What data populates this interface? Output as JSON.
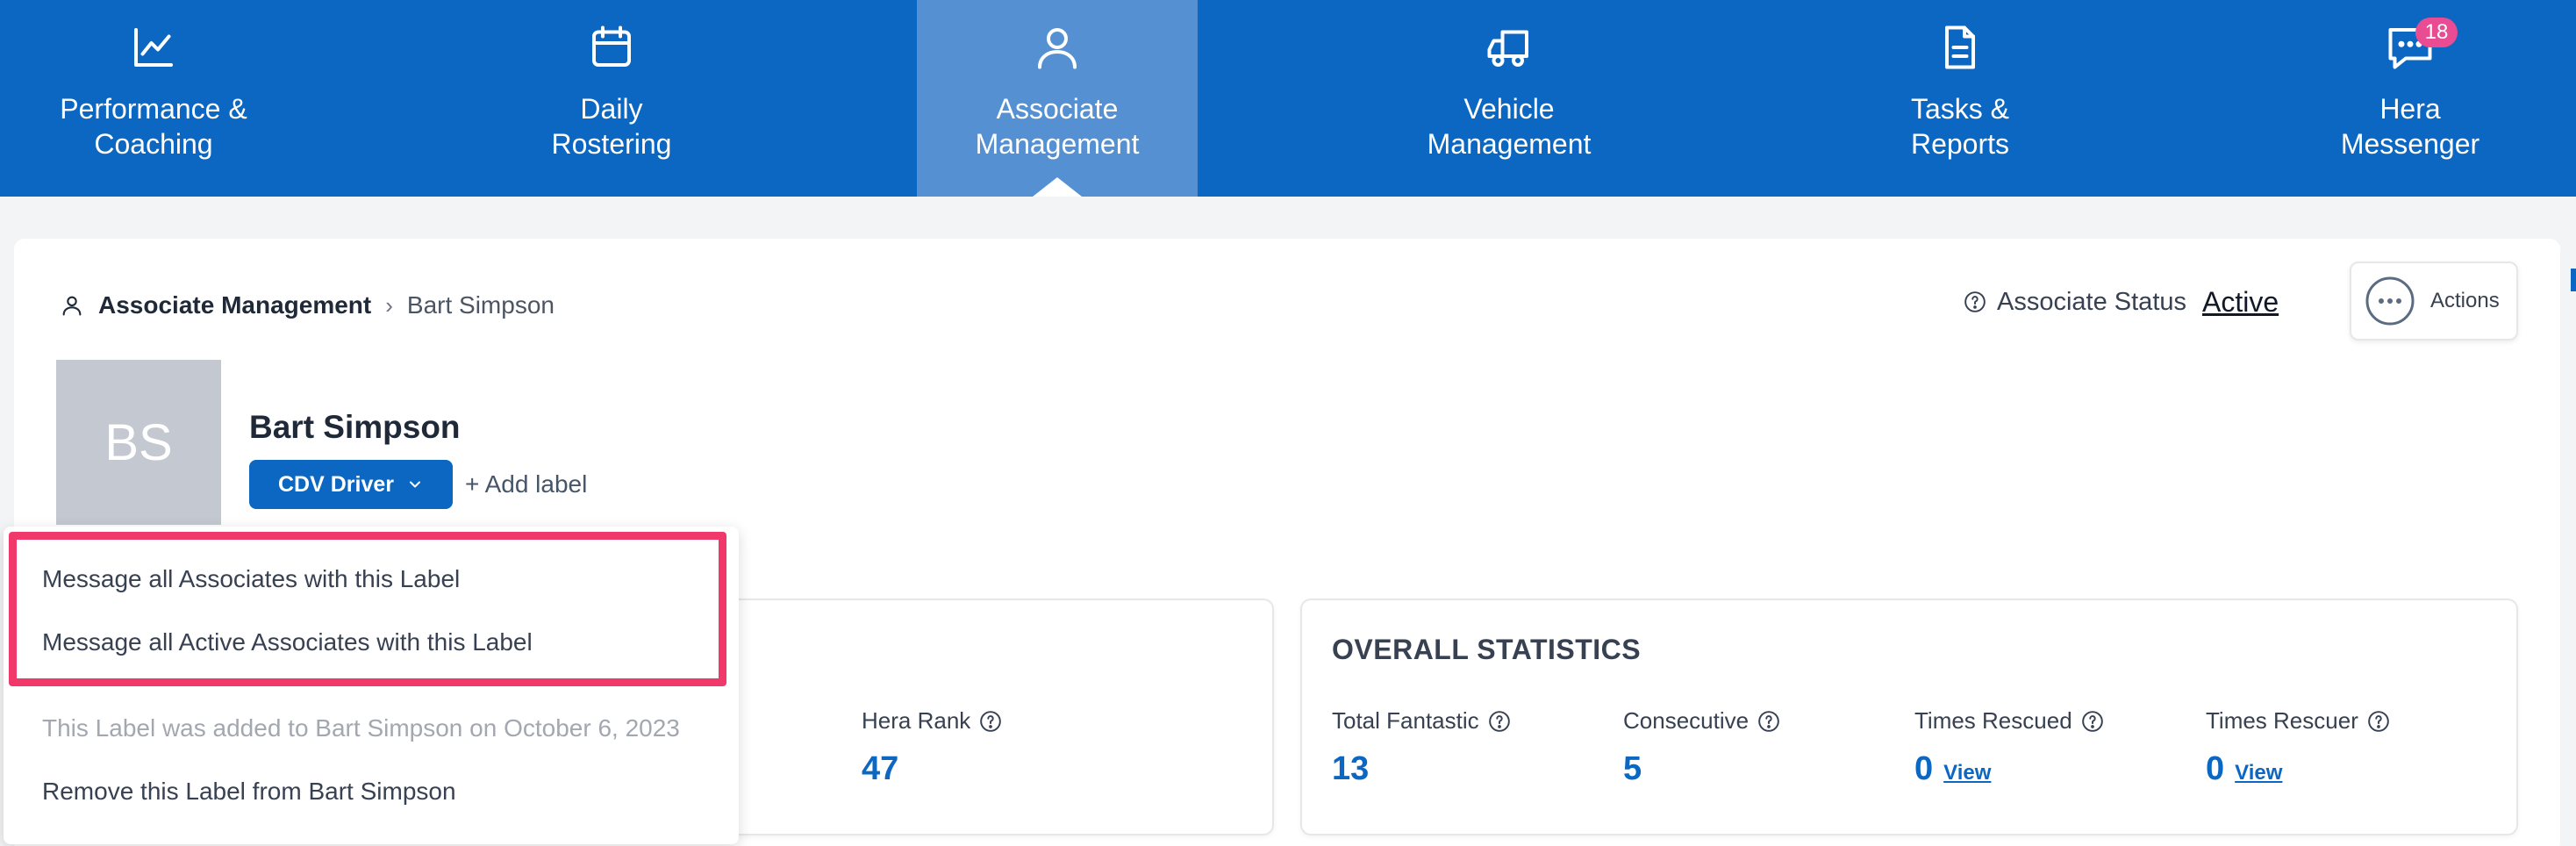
{
  "nav": {
    "items": [
      {
        "label": "Performance &\nCoaching",
        "icon": "chart-line-icon"
      },
      {
        "label": "Daily\nRostering",
        "icon": "calendar-icon"
      },
      {
        "label": "Associate\nManagement",
        "icon": "user-icon",
        "active": true
      },
      {
        "label": "Vehicle\nManagement",
        "icon": "truck-icon"
      },
      {
        "label": "Tasks &\nReports",
        "icon": "document-icon"
      },
      {
        "label": "Hera\nMessenger",
        "icon": "message-icon",
        "badge": "18"
      }
    ]
  },
  "breadcrumb": {
    "root": "Associate Management",
    "current": "Bart Simpson"
  },
  "status": {
    "label": "Associate Status",
    "value": "Active"
  },
  "actions": {
    "label": "Actions"
  },
  "profile": {
    "initials": "BS",
    "name": "Bart Simpson",
    "label": "CDV Driver",
    "add_label": "+ Add label"
  },
  "dropdown": {
    "item1": "Message all Associates with this Label",
    "item2": "Message all Active Associates with this Label",
    "info": "This Label was added to Bart Simpson on October 6, 2023",
    "remove": "Remove this Label from Bart Simpson"
  },
  "left_panel": {
    "stat_label": "Hera Rank",
    "stat_value": "47"
  },
  "overall": {
    "title": "OVERALL STATISTICS",
    "stats": [
      {
        "label": "Total Fantastic",
        "value": "13"
      },
      {
        "label": "Consecutive",
        "value": "5"
      },
      {
        "label": "Times Rescued",
        "value": "0",
        "link": "View"
      },
      {
        "label": "Times Rescuer",
        "value": "0",
        "link": "View"
      }
    ]
  },
  "colors": {
    "brand": "#0b67c2",
    "active_nav": "#5590d3",
    "highlight": "#f0386b",
    "badge": "#e94c92"
  }
}
